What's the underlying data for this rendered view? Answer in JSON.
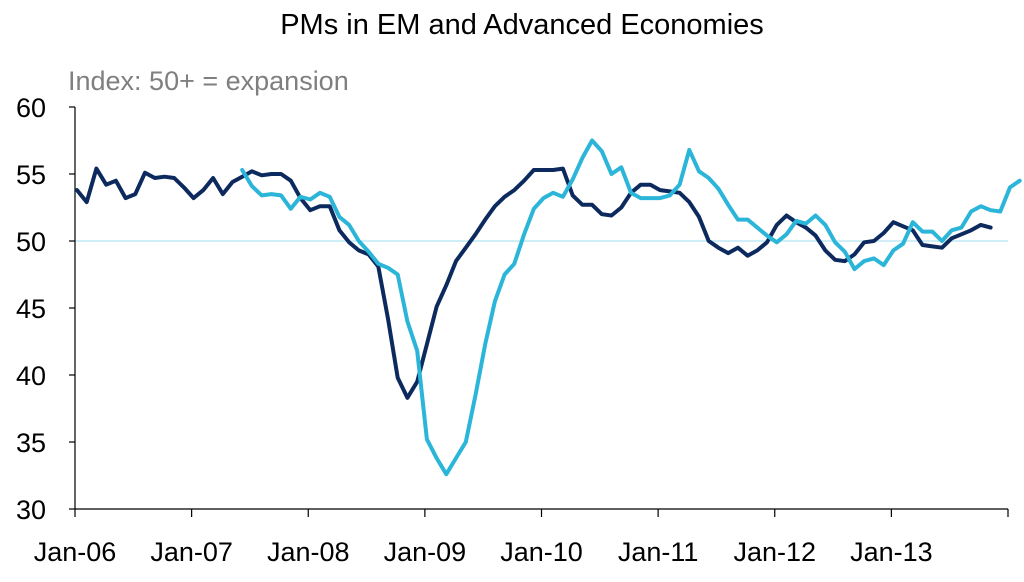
{
  "chart_data": {
    "type": "line",
    "title": "PMs in EM and Advanced Economies",
    "subtitle": "Index: 50+ = expansion",
    "xlabel": "",
    "ylabel": "",
    "ylim": [
      30,
      60
    ],
    "yticks": [
      "30",
      "35",
      "40",
      "45",
      "50",
      "55",
      "60"
    ],
    "xticks": [
      "Jan-06",
      "Jan-07",
      "Jan-08",
      "Jan-09",
      "Jan-10",
      "Jan-11",
      "Jan-12",
      "Jan-13"
    ],
    "reference_line": 50,
    "grid": false,
    "legend": "none",
    "series": [
      {
        "color": "#0d2a5e",
        "start": "Jan-06",
        "values": [
          53.8,
          52.9,
          55.4,
          54.2,
          54.5,
          53.2,
          53.5,
          55.1,
          54.7,
          54.8,
          54.7,
          54.0,
          53.2,
          53.8,
          54.7,
          53.5,
          54.4,
          54.8,
          55.2,
          54.9,
          55.0,
          55.0,
          54.5,
          53.2,
          52.3,
          52.6,
          52.6,
          50.8,
          49.9,
          49.3,
          49.0,
          48.1,
          44.2,
          39.8,
          38.3,
          39.5,
          42.3,
          45.1,
          46.7,
          48.5,
          49.5,
          50.5,
          51.6,
          52.6,
          53.3,
          53.8,
          54.5,
          55.3,
          55.3,
          55.3,
          55.4,
          53.4,
          52.7,
          52.7,
          52.0,
          51.9,
          52.5,
          53.6,
          54.2,
          54.2,
          53.8,
          53.7,
          53.6,
          52.9,
          51.8,
          50.0,
          49.5,
          49.1,
          49.5,
          48.9,
          49.3,
          49.9,
          51.2,
          51.9,
          51.4,
          51.0,
          50.4,
          49.3,
          48.6,
          48.5,
          49.0,
          49.9,
          50.0,
          50.6,
          51.4,
          51.1,
          50.8,
          49.7,
          49.6,
          49.5,
          50.2,
          50.5,
          50.8,
          51.2,
          51.0
        ]
      },
      {
        "color": "#2bb5d8",
        "start": "Jun-07",
        "values": [
          55.3,
          54.1,
          53.4,
          53.5,
          53.4,
          52.4,
          53.3,
          53.1,
          53.6,
          53.3,
          51.8,
          51.2,
          50.0,
          49.2,
          48.3,
          48.0,
          47.5,
          44.0,
          41.8,
          35.2,
          33.8,
          32.6,
          33.8,
          35.0,
          38.5,
          42.3,
          45.5,
          47.5,
          48.3,
          50.5,
          52.4,
          53.2,
          53.6,
          53.3,
          54.6,
          56.2,
          57.5,
          56.7,
          55.0,
          55.5,
          53.6,
          53.2,
          53.2,
          53.2,
          53.4,
          54.2,
          56.8,
          55.2,
          54.7,
          53.9,
          52.7,
          51.6,
          51.6,
          51.0,
          50.4,
          49.9,
          50.5,
          51.5,
          51.3,
          51.9,
          51.2,
          49.9,
          49.2,
          47.9,
          48.5,
          48.7,
          48.2,
          49.3,
          49.8,
          51.4,
          50.7,
          50.7,
          50.0,
          50.8,
          51.0,
          52.2,
          52.6,
          52.3,
          52.2,
          54.0,
          54.5
        ]
      }
    ]
  }
}
